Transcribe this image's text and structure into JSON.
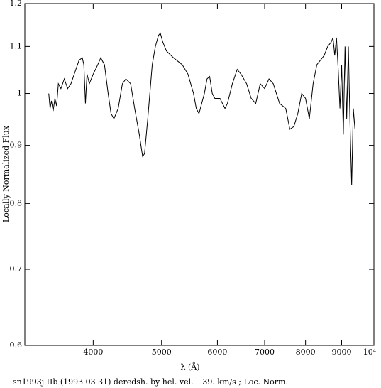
{
  "chart_data": {
    "type": "line",
    "xlabel": "λ (Å)",
    "ylabel": "Locally Normalized Flux",
    "caption": "sn1993j IIb (1993 03 31) deredsh. by hel. vel.    −39. km/s ;  Loc. Norm.",
    "xlog": true,
    "ylog": true,
    "color": "#000000",
    "xlim": [
      3200,
      10000
    ],
    "ylim": [
      0.6,
      1.2
    ],
    "xticks": [
      4000,
      5000,
      6000,
      7000,
      8000,
      9000,
      {
        "value": 10000,
        "label": "10⁴"
      }
    ],
    "yticks": [
      0.6,
      0.7,
      0.8,
      0.9,
      1,
      1.1,
      1.2
    ],
    "x": [
      3460,
      3475,
      3490,
      3510,
      3530,
      3550,
      3570,
      3600,
      3640,
      3680,
      3720,
      3760,
      3820,
      3860,
      3880,
      3900,
      3920,
      3950,
      4000,
      4060,
      4100,
      4150,
      4200,
      4240,
      4280,
      4340,
      4400,
      4450,
      4520,
      4580,
      4650,
      4700,
      4730,
      4780,
      4850,
      4900,
      4950,
      4980,
      5020,
      5080,
      5200,
      5350,
      5450,
      5550,
      5600,
      5650,
      5750,
      5800,
      5850,
      5900,
      5950,
      6050,
      6150,
      6200,
      6300,
      6400,
      6480,
      6600,
      6700,
      6800,
      6900,
      7000,
      7100,
      7200,
      7350,
      7500,
      7600,
      7700,
      7800,
      7900,
      8000,
      8100,
      8200,
      8300,
      8400,
      8500,
      8600,
      8700,
      8750,
      8800,
      8850,
      8900,
      8950,
      9000,
      9050,
      9100,
      9150,
      9200,
      9250,
      9300,
      9350,
      9400
    ],
    "values": [
      1.0,
      0.97,
      0.985,
      0.965,
      0.99,
      0.975,
      1.02,
      1.01,
      1.03,
      1.01,
      1.02,
      1.04,
      1.07,
      1.075,
      1.06,
      0.98,
      1.04,
      1.02,
      1.04,
      1.06,
      1.075,
      1.06,
      1.0,
      0.96,
      0.95,
      0.97,
      1.02,
      1.03,
      1.02,
      0.97,
      0.92,
      0.88,
      0.885,
      0.95,
      1.06,
      1.1,
      1.125,
      1.13,
      1.11,
      1.09,
      1.075,
      1.06,
      1.04,
      1.0,
      0.97,
      0.96,
      1.0,
      1.03,
      1.035,
      1.0,
      0.99,
      0.99,
      0.97,
      0.98,
      1.02,
      1.05,
      1.04,
      1.02,
      0.99,
      0.98,
      1.02,
      1.01,
      1.03,
      1.02,
      0.98,
      0.97,
      0.93,
      0.935,
      0.96,
      1.0,
      0.99,
      0.95,
      1.02,
      1.06,
      1.07,
      1.08,
      1.1,
      1.11,
      1.12,
      1.08,
      1.12,
      1.05,
      0.97,
      1.06,
      0.92,
      1.1,
      0.95,
      1.1,
      0.94,
      0.83,
      0.97,
      0.93
    ]
  }
}
